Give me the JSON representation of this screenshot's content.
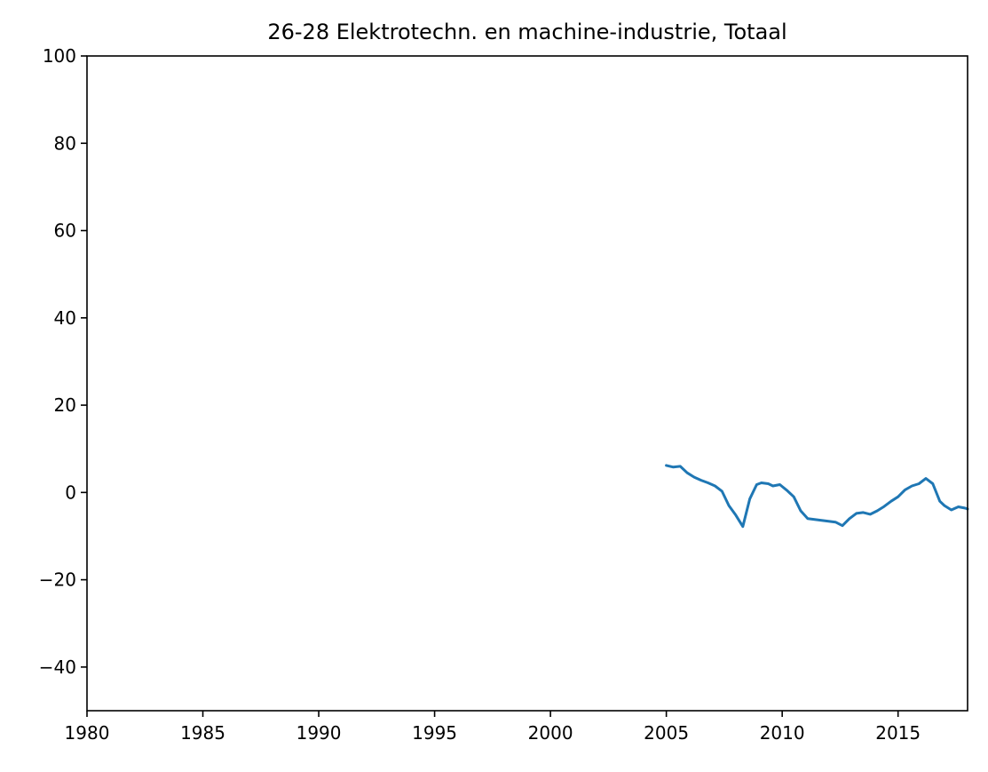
{
  "chart_data": {
    "type": "line",
    "title": "26-28 Elektrotechn. en machine-industrie, Totaal",
    "xlabel": "",
    "ylabel": "",
    "xlim": [
      1980,
      2018
    ],
    "ylim": [
      -50,
      100
    ],
    "x_ticks": [
      1980,
      1985,
      1990,
      1995,
      2000,
      2005,
      2010,
      2015
    ],
    "y_ticks": [
      100,
      80,
      60,
      40,
      20,
      0,
      -20,
      -40
    ],
    "y_tick_labels": [
      "100",
      "80",
      "60",
      "40",
      "20",
      "0",
      "−20",
      "−40"
    ],
    "grid": false,
    "colors": {
      "line": "#1f77b4"
    },
    "series": [
      {
        "x": [
          2005.0,
          2005.3,
          2005.6,
          2005.9,
          2006.2,
          2006.5,
          2006.8,
          2007.1,
          2007.4,
          2007.7,
          2008.0,
          2008.3,
          2008.6,
          2008.9,
          2009.1,
          2009.4,
          2009.6,
          2009.9,
          2010.2,
          2010.5,
          2010.8,
          2011.1,
          2011.4,
          2011.7,
          2012.0,
          2012.3,
          2012.6,
          2012.9,
          2013.2,
          2013.5,
          2013.8,
          2014.1,
          2014.4,
          2014.7,
          2015.0,
          2015.3,
          2015.6,
          2015.9,
          2016.2,
          2016.5,
          2016.8,
          2017.0,
          2017.3,
          2017.6,
          2017.9,
          2018.0
        ],
        "y": [
          6.2,
          5.8,
          6.0,
          4.5,
          3.5,
          2.8,
          2.2,
          1.5,
          0.3,
          -3.0,
          -5.2,
          -7.8,
          -1.5,
          1.8,
          2.2,
          2.0,
          1.5,
          1.8,
          0.5,
          -1.0,
          -4.2,
          -6.0,
          -6.2,
          -6.4,
          -6.6,
          -6.8,
          -7.6,
          -6.0,
          -4.8,
          -4.6,
          -5.0,
          -4.2,
          -3.2,
          -2.0,
          -1.0,
          0.6,
          1.5,
          2.0,
          3.2,
          2.0,
          -2.0,
          -3.0,
          -4.0,
          -3.3,
          -3.6,
          -3.8
        ]
      }
    ]
  }
}
